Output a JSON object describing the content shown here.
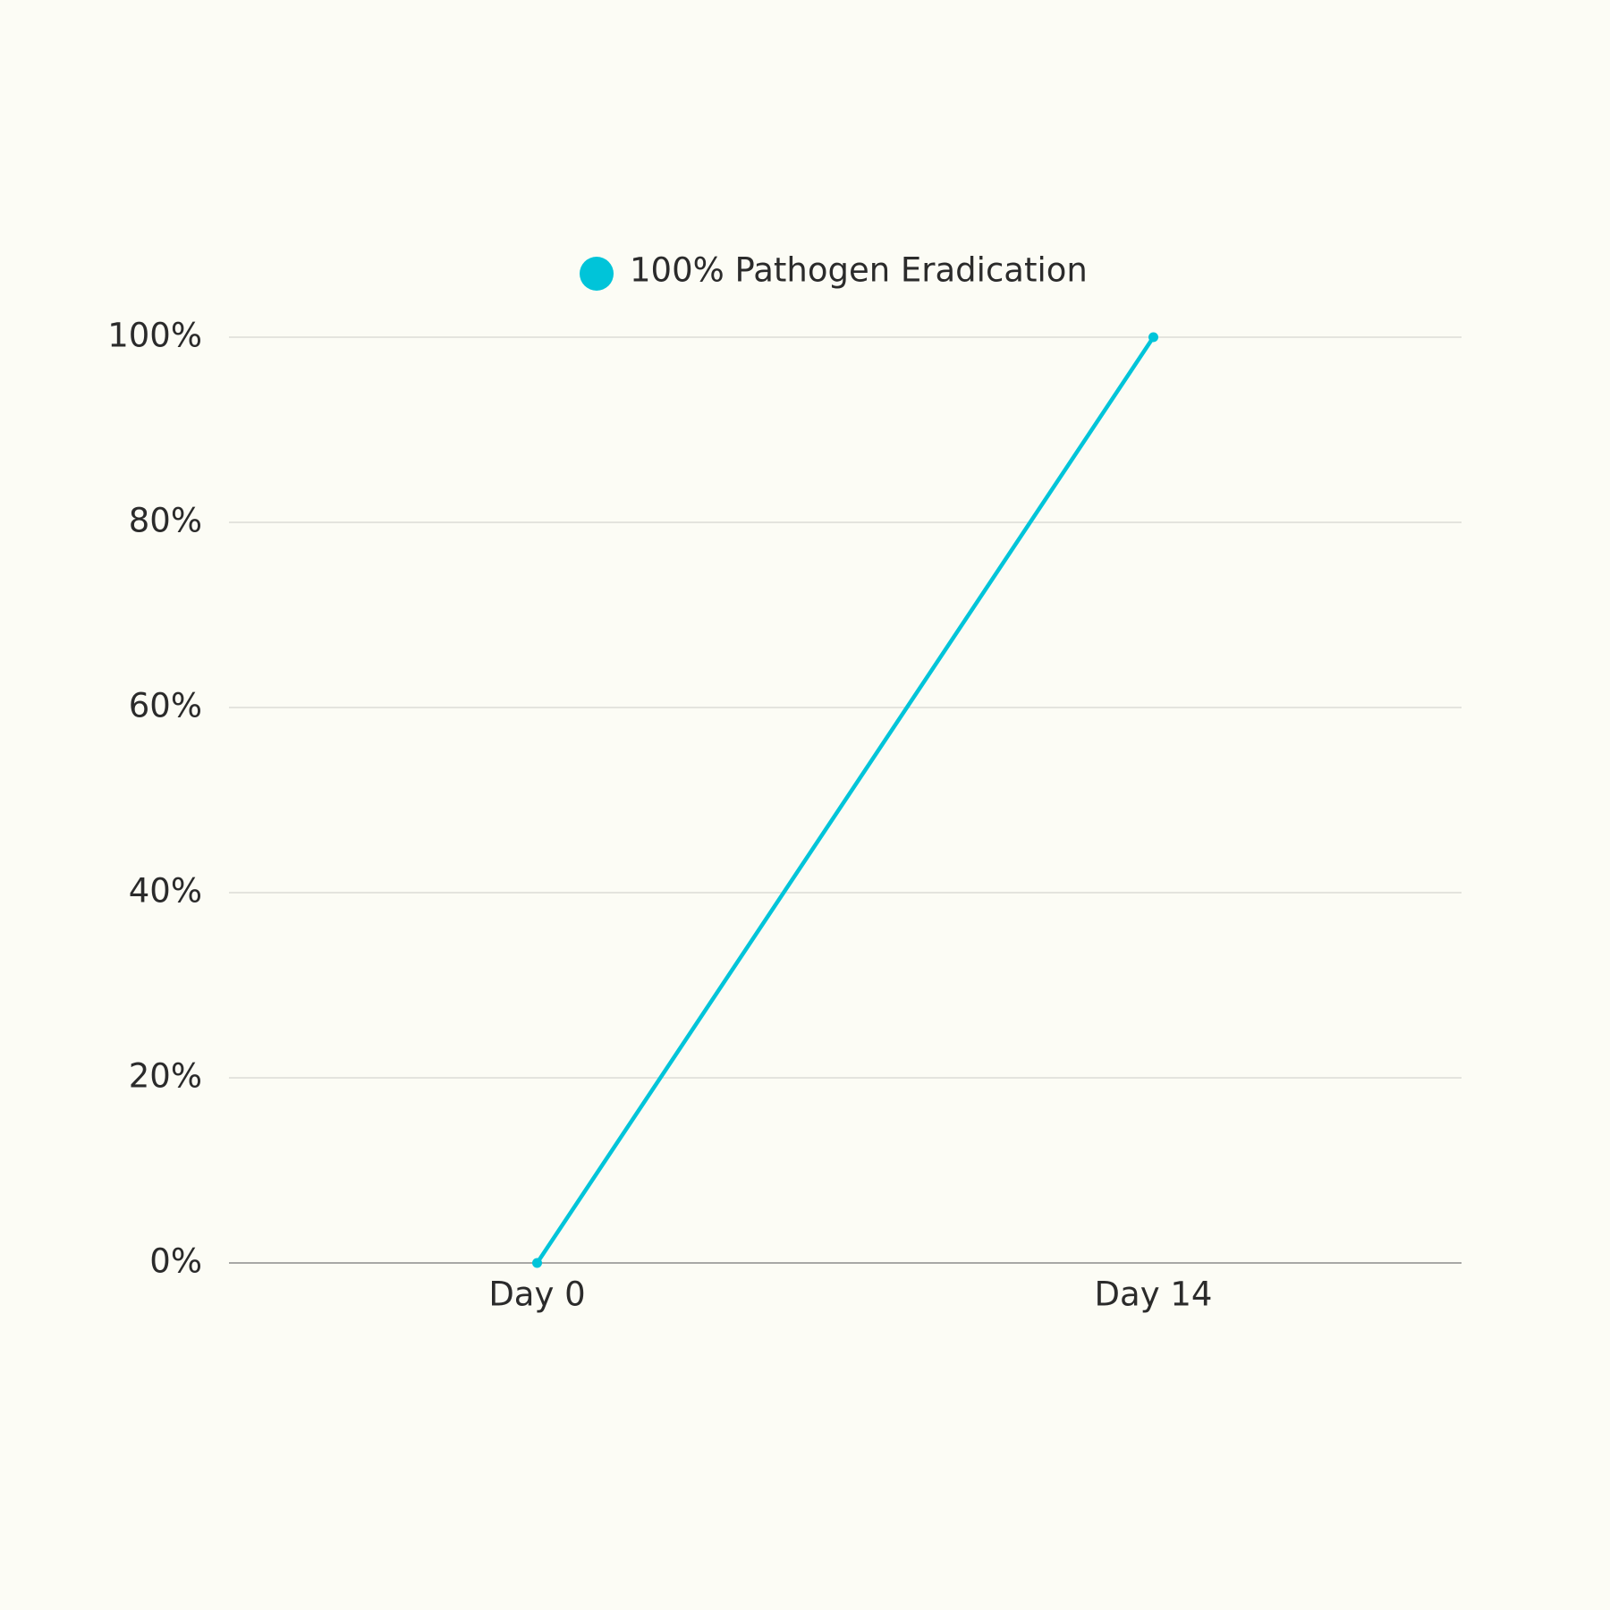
{
  "chart_data": {
    "type": "line",
    "categories": [
      "Day 0",
      "Day 14"
    ],
    "series": [
      {
        "name": "100% Pathogen Eradication",
        "color": "#00c4d9",
        "values": [
          0,
          100
        ]
      }
    ],
    "ylim": [
      0,
      100
    ],
    "yticks": [
      {
        "value": 0,
        "label": "0%"
      },
      {
        "value": 20,
        "label": "20%"
      },
      {
        "value": 40,
        "label": "40%"
      },
      {
        "value": 60,
        "label": "60%"
      },
      {
        "value": 80,
        "label": "80%"
      },
      {
        "value": 100,
        "label": "100%"
      }
    ],
    "grid": true
  }
}
